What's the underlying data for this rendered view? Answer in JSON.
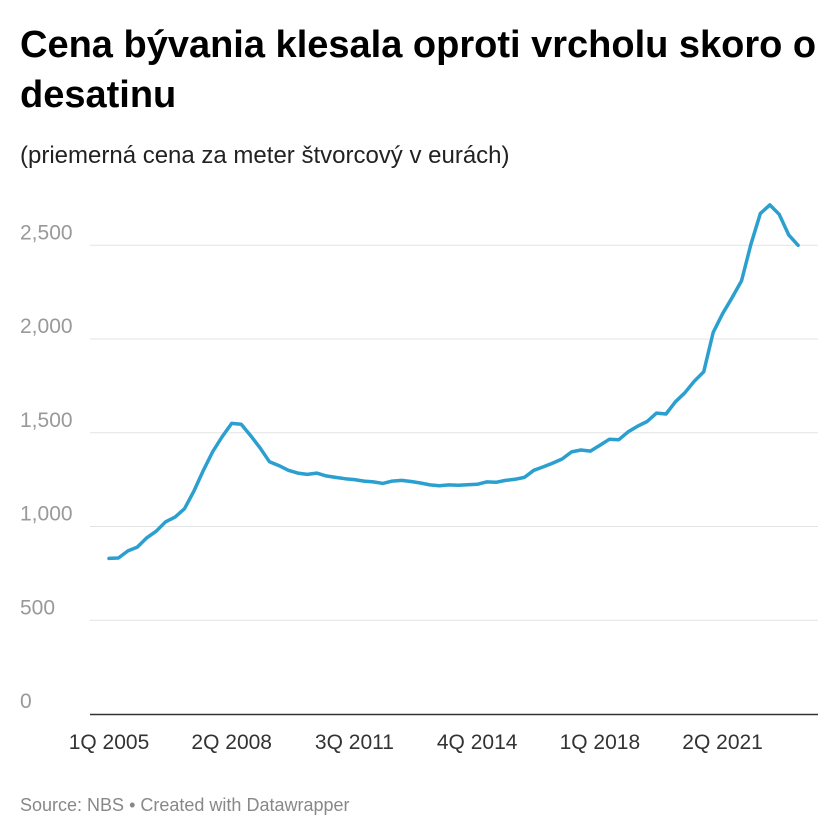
{
  "header": {
    "title": "Cena bývania klesala oproti vrcholu skoro o desatinu",
    "subtitle": "(priemerná cena za meter štvorcový v eurách)"
  },
  "footer": {
    "source": "Source: NBS",
    "separator": "•",
    "credit": "Created with Datawrapper"
  },
  "chart_data": {
    "type": "line",
    "title": "Cena bývania klesala oproti vrcholu skoro o desatinu",
    "subtitle": "(priemerná cena za meter štvorcový v eurách)",
    "xlabel": "",
    "ylabel": "",
    "ylim": [
      0,
      2800
    ],
    "grid": true,
    "line_color": "#2b9fcf",
    "y_ticks": [
      {
        "value": 0,
        "label": "0"
      },
      {
        "value": 500,
        "label": "500"
      },
      {
        "value": 1000,
        "label": "1,000"
      },
      {
        "value": 1500,
        "label": "1,500"
      },
      {
        "value": 2000,
        "label": "2,000"
      },
      {
        "value": 2500,
        "label": "2,500"
      }
    ],
    "x_ticks": [
      {
        "label": "1Q 2005",
        "index": 0
      },
      {
        "label": "2Q 2008",
        "index": 13
      },
      {
        "label": "3Q 2011",
        "index": 26
      },
      {
        "label": "4Q 2014",
        "index": 39
      },
      {
        "label": "1Q 2018",
        "index": 52
      },
      {
        "label": "2Q 2021",
        "index": 65
      }
    ],
    "series": [
      {
        "name": "",
        "start": "1Q 2005",
        "frequency": "quarterly",
        "values": [
          830,
          832,
          870,
          890,
          940,
          975,
          1025,
          1050,
          1095,
          1190,
          1300,
          1400,
          1480,
          1550,
          1545,
          1485,
          1420,
          1345,
          1325,
          1300,
          1285,
          1278,
          1285,
          1270,
          1262,
          1255,
          1250,
          1242,
          1238,
          1230,
          1242,
          1246,
          1240,
          1232,
          1222,
          1217,
          1222,
          1220,
          1223,
          1225,
          1238,
          1236,
          1246,
          1252,
          1262,
          1300,
          1318,
          1338,
          1360,
          1398,
          1408,
          1402,
          1433,
          1465,
          1463,
          1505,
          1535,
          1560,
          1605,
          1600,
          1665,
          1713,
          1775,
          1825,
          2035,
          2135,
          2220,
          2310,
          2505,
          2670,
          2715,
          2665,
          2555,
          2500
        ]
      }
    ]
  }
}
